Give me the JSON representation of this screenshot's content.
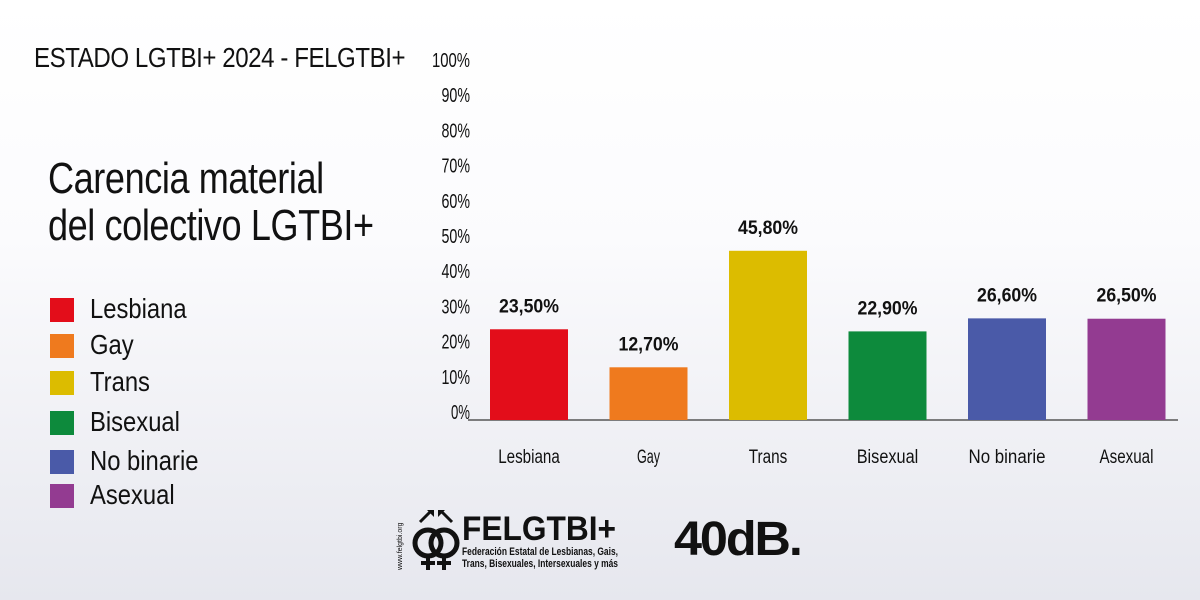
{
  "header": "ESTADO LGTBI+ 2024 - FELGTBI+",
  "title_line1": "Carencia material",
  "title_line2": "del colectivo LGTBI+",
  "legend": [
    {
      "label": "Lesbiana",
      "color": "#e30d1a"
    },
    {
      "label": "Gay",
      "color": "#ef7a1e"
    },
    {
      "label": "Trans",
      "color": "#dcbc00"
    },
    {
      "label": "Bisexual",
      "color": "#0d8a3c"
    },
    {
      "label": "No binarie",
      "color": "#4a5aa8"
    },
    {
      "label": "Asexual",
      "color": "#933b91"
    }
  ],
  "chart_data": {
    "type": "bar",
    "categories": [
      "Lesbiana",
      "Gay",
      "Trans",
      "Bisexual",
      "No binarie",
      "Asexual"
    ],
    "values": [
      23.5,
      12.7,
      45.8,
      22.9,
      26.6,
      26.5
    ],
    "value_labels": [
      "23,50%",
      "12,70%",
      "45,80%",
      "22,90%",
      "26,60%",
      "26,50%"
    ],
    "colors": [
      "#e30d1a",
      "#ef7a1e",
      "#dcbc00",
      "#0d8a3c",
      "#4a5aa8",
      "#933b91"
    ],
    "ylim": [
      0,
      100
    ],
    "yticks": [
      "0%",
      "10%",
      "20%",
      "30%",
      "40%",
      "50%",
      "60%",
      "70%",
      "80%",
      "90%",
      "100%"
    ]
  },
  "logos": {
    "felgtbi_name": "FELGTBI+",
    "felgtbi_sub1": "Federación Estatal de Lesbianas, Gais,",
    "felgtbi_sub2": "Trans, Bisexuales, Intersexuales y más",
    "felgtbi_url": "www.felgtbi.org",
    "forty_db": "40dB."
  }
}
